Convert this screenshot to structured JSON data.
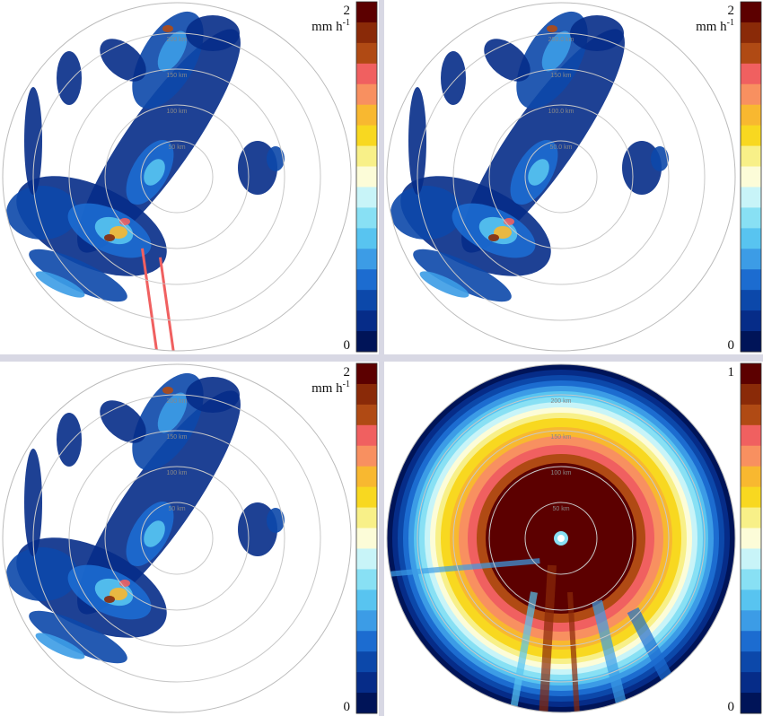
{
  "colorbar_colors": [
    "#5c0000",
    "#8a2a08",
    "#b04a14",
    "#f06060",
    "#f89060",
    "#f8b830",
    "#f8d820",
    "#f8f088",
    "#fcfcd8",
    "#c8f4f8",
    "#88e0f4",
    "#58c4f0",
    "#3c9ce6",
    "#1c6cd0",
    "#0c48aa",
    "#062c88",
    "#001458"
  ],
  "panels": [
    {
      "kind": "rain",
      "colorbar": {
        "max": "2",
        "min": "0",
        "unit": "mm h",
        "unit_sup": "-1"
      },
      "ring_labels": [
        "50 km",
        "100 km",
        "150 km",
        "200 km"
      ]
    },
    {
      "kind": "rain",
      "colorbar": {
        "max": "2",
        "min": "0",
        "unit": "mm h",
        "unit_sup": "-1"
      },
      "ring_labels": [
        "50.0 km",
        "100.0 km",
        "150 km",
        "200.0 km"
      ]
    },
    {
      "kind": "rain",
      "colorbar": {
        "max": "2",
        "min": "0",
        "unit": "mm h",
        "unit_sup": "-1"
      },
      "ring_labels": [
        "50 km",
        "100 km",
        "150 km",
        "200 km"
      ]
    },
    {
      "kind": "quality",
      "colorbar": {
        "max": "1",
        "min": "0"
      },
      "ring_labels": [
        "50 km",
        "100 km",
        "150 km",
        "200 km"
      ]
    }
  ]
}
